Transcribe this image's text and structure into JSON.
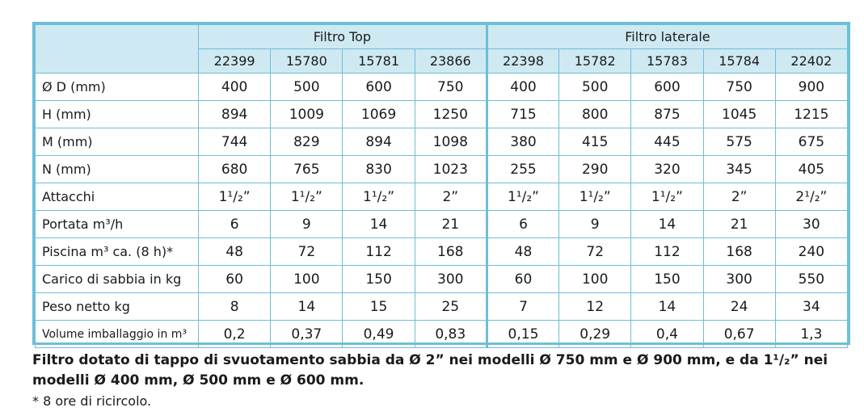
{
  "header": {
    "group_top": "Filtro Top",
    "group_lateral": "Filtro laterale",
    "codes": [
      "22399",
      "15780",
      "15781",
      "23866",
      "22398",
      "15782",
      "15783",
      "15784",
      "22402"
    ]
  },
  "rows": [
    {
      "label": "Ø D (mm)",
      "values": [
        "400",
        "500",
        "600",
        "750",
        "400",
        "500",
        "600",
        "750",
        "900"
      ]
    },
    {
      "label": "H (mm)",
      "values": [
        "894",
        "1009",
        "1069",
        "1250",
        "715",
        "800",
        "875",
        "1045",
        "1215"
      ]
    },
    {
      "label": "M (mm)",
      "values": [
        "744",
        "829",
        "894",
        "1098",
        "380",
        "415",
        "445",
        "575",
        "675"
      ]
    },
    {
      "label": "N (mm)",
      "values": [
        "680",
        "765",
        "830",
        "1023",
        "255",
        "290",
        "320",
        "345",
        "405"
      ]
    },
    {
      "label": "Attacchi",
      "values": [
        "1¹/₂”",
        "1¹/₂”",
        "1¹/₂”",
        "2”",
        "1¹/₂”",
        "1¹/₂”",
        "1¹/₂”",
        "2”",
        "2¹/₂”"
      ]
    },
    {
      "label": "Portata m³/h",
      "values": [
        "6",
        "9",
        "14",
        "21",
        "6",
        "9",
        "14",
        "21",
        "30"
      ]
    },
    {
      "label": "Piscina m³ ca. (8 h)*",
      "values": [
        "48",
        "72",
        "112",
        "168",
        "48",
        "72",
        "112",
        "168",
        "240"
      ]
    },
    {
      "label": "Carico di sabbia in kg",
      "values": [
        "60",
        "100",
        "150",
        "300",
        "60",
        "100",
        "150",
        "300",
        "550"
      ]
    },
    {
      "label": "Peso netto kg",
      "values": [
        "8",
        "14",
        "15",
        "25",
        "7",
        "12",
        "14",
        "24",
        "34"
      ]
    },
    {
      "label": "Volume imballaggio in m³",
      "values": [
        "0,2",
        "0,37",
        "0,49",
        "0,83",
        "0,15",
        "0,29",
        "0,4",
        "0,67",
        "1,3"
      ]
    }
  ],
  "notes": {
    "line1": "Filtro dotato di tappo di svuotamento sabbia da Ø 2” nei modelli Ø 750 mm e Ø 900 mm, e da 1¹/₂” nei",
    "line2": "modelli Ø 400 mm, Ø 500 mm e Ø 600 mm.",
    "footnote": "* 8 ore di ricircolo."
  },
  "colors": {
    "border": "#6cbfd6",
    "header_bg": "#cfe9f2"
  }
}
